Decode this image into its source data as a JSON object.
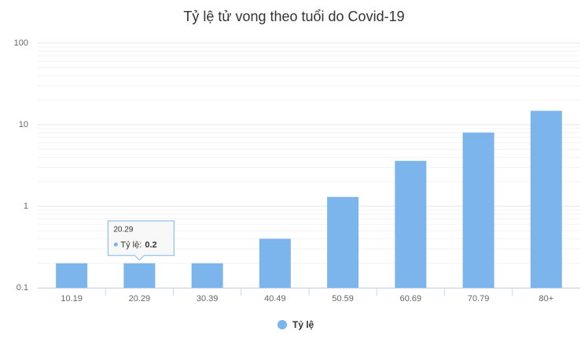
{
  "chart_data": {
    "type": "bar",
    "title": "Tỷ lệ tử vong theo tuổi do Covid-19",
    "categories": [
      "10.19",
      "20.29",
      "30.39",
      "40.49",
      "50.59",
      "60.69",
      "70.79",
      "80+"
    ],
    "series": [
      {
        "name": "Tỷ lệ",
        "color": "#7cb5ec",
        "values": [
          0.2,
          0.2,
          0.2,
          0.4,
          1.3,
          3.6,
          8.0,
          14.8
        ]
      }
    ],
    "ylim": [
      0.1,
      100
    ],
    "yticks": [
      0.1,
      1,
      10,
      100
    ],
    "log_scale": true,
    "grid": true,
    "legend": "bottom",
    "tooltip": {
      "label": "Tỷ lệ:"
    }
  }
}
